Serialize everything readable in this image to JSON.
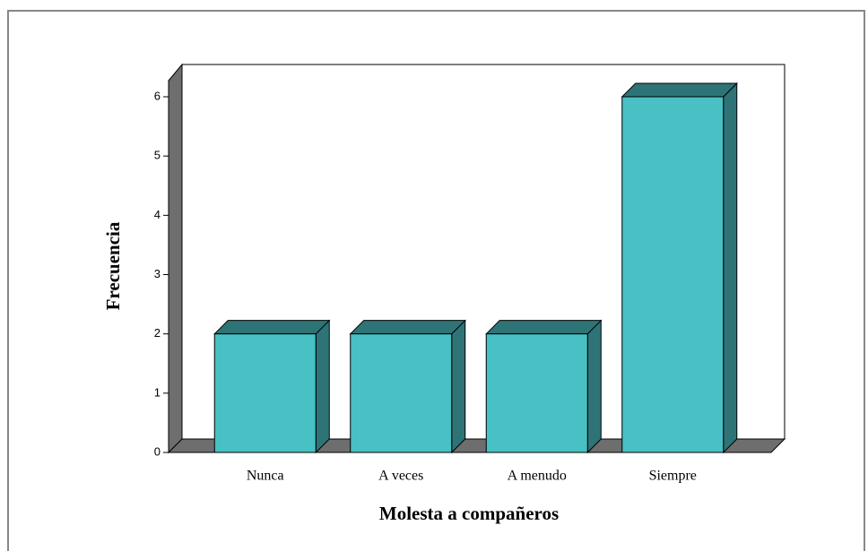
{
  "chart_data": {
    "type": "bar3d",
    "x_label": "Molesta a compañeros",
    "y_label": "Frecuencia",
    "categories": [
      "Nunca",
      "A veces",
      "A menudo",
      "Siempre"
    ],
    "values": [
      2,
      2,
      2,
      6
    ],
    "color": "#48c0c4",
    "ylim": [
      0,
      6
    ],
    "yticks": [
      0,
      1,
      2,
      3,
      4,
      5,
      6
    ]
  }
}
